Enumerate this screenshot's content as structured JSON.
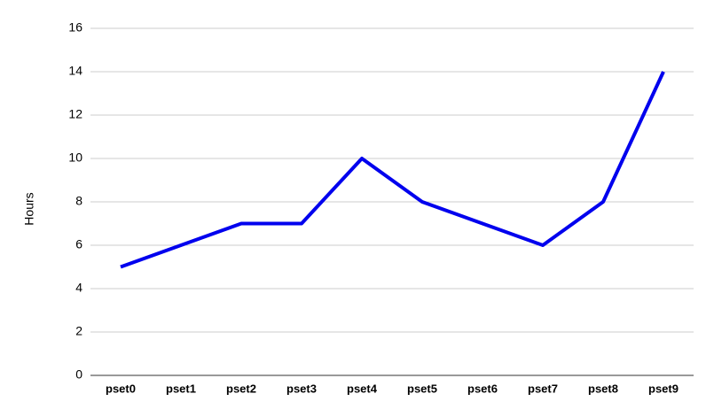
{
  "chart_data": {
    "type": "line",
    "y_label": "Hours",
    "categories": [
      "pset0",
      "pset1",
      "pset2",
      "pset3",
      "pset4",
      "pset5",
      "pset6",
      "pset7",
      "pset8",
      "pset9"
    ],
    "values": [
      5,
      6,
      7,
      7,
      10,
      8,
      7,
      6,
      8,
      14
    ],
    "color": "#0000ee",
    "ylim": [
      0,
      16
    ],
    "yticks": [
      0,
      2,
      4,
      6,
      8,
      10,
      12,
      14,
      16
    ],
    "grid": true
  }
}
